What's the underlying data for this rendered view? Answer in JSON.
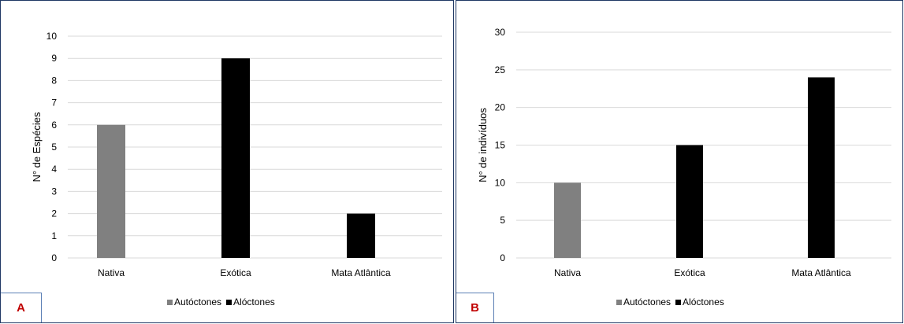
{
  "colors": {
    "autoctones": "#808080",
    "aloctones": "#000000",
    "gridline": "#d9d9d9",
    "frame": "#1f3864",
    "panel_label": "#c00000"
  },
  "legend": {
    "autoctones": "Autóctones",
    "aloctones": "Alóctones"
  },
  "chart_data": [
    {
      "type": "bar",
      "panel_label": "A",
      "ylabel": "N° de Espécies",
      "xlabel": "",
      "categories": [
        "Nativa",
        "Exótica",
        "Mata Atlântica"
      ],
      "series": [
        {
          "name": "Autóctones",
          "values": [
            6,
            null,
            null
          ]
        },
        {
          "name": "Alóctones",
          "values": [
            null,
            9,
            2
          ]
        }
      ],
      "yticks": [
        0,
        1,
        2,
        3,
        4,
        5,
        6,
        7,
        8,
        9,
        10
      ],
      "ylim": [
        0,
        10
      ],
      "grid": true,
      "legend_position": "bottom"
    },
    {
      "type": "bar",
      "panel_label": "B",
      "ylabel": "N° de indivíduos",
      "xlabel": "",
      "categories": [
        "Nativa",
        "Exótica",
        "Mata Atlântica"
      ],
      "series": [
        {
          "name": "Autóctones",
          "values": [
            10,
            null,
            null
          ]
        },
        {
          "name": "Alóctones",
          "values": [
            null,
            15,
            24
          ]
        }
      ],
      "yticks": [
        0,
        5,
        10,
        15,
        20,
        25,
        30
      ],
      "ylim": [
        0,
        30
      ],
      "grid": true,
      "legend_position": "bottom"
    }
  ]
}
